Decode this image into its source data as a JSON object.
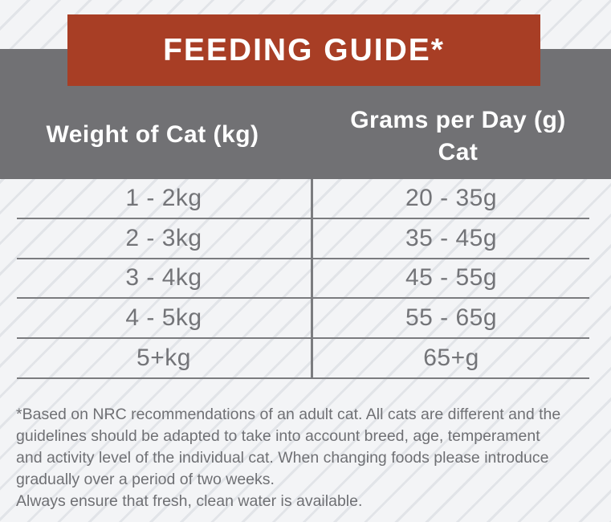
{
  "chart_data": {
    "type": "table",
    "title": "FEEDING GUIDE*",
    "columns": [
      "Weight of Cat (kg)",
      "Grams per Day (g) Cat"
    ],
    "rows": [
      {
        "weight": "1 - 2kg",
        "grams": "20 - 35g"
      },
      {
        "weight": "2 - 3kg",
        "grams": "35 - 45g"
      },
      {
        "weight": "3 - 4kg",
        "grams": "45 - 55g"
      },
      {
        "weight": "4 - 5kg",
        "grams": "55 - 65g"
      },
      {
        "weight": "5+kg",
        "grams": "65+g"
      }
    ]
  },
  "header": {
    "col1": "Weight of Cat (kg)",
    "col2": "Grams per Day (g)\nCat"
  },
  "footnote": {
    "text": "*Based on NRC recommendations of an adult cat. All cats are different and the\nguidelines should be adapted to take into account breed, age, temperament\nand activity level of the individual cat. When changing foods please introduce\ngradually over a period of two weeks.\nAlways ensure that fresh, clean water is available."
  },
  "colors": {
    "banner_red": "#a83e25",
    "band_gray": "#717174",
    "rule_gray": "#7b7c7f",
    "cell_text_gray": "#737478",
    "footnote_gray": "#6f7074",
    "page_bg": "#f3f4f6",
    "title_text": "#ffffff"
  }
}
